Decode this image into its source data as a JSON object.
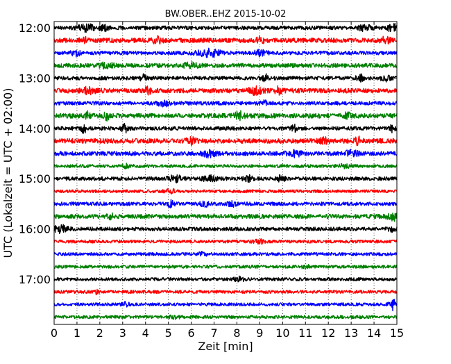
{
  "chart_data": {
    "type": "line",
    "title": "BW.OBER..EHZ 2015-10-02",
    "xlabel": "Zeit  [min]",
    "ylabel": "UTC (Lokalzeit = UTC + 02:00)",
    "xlim": [
      0,
      15
    ],
    "x_ticks": [
      "0",
      "1",
      "2",
      "3",
      "4",
      "5",
      "6",
      "7",
      "8",
      "9",
      "10",
      "11",
      "12",
      "13",
      "14",
      "15"
    ],
    "y_ticks": [
      "12:00",
      "13:00",
      "14:00",
      "15:00",
      "16:00",
      "17:00"
    ],
    "x_grid": true,
    "trace_color_cycle": [
      "#000000",
      "#ff0000",
      "#0000ff",
      "#008000"
    ],
    "series": [
      {
        "start_utc": "12:00",
        "noise": 0.35,
        "events": [
          {
            "t": 1.4,
            "a": 0.55,
            "w": 0.35
          },
          {
            "t": 2.2,
            "a": 0.4,
            "w": 0.3
          },
          {
            "t": 13.6,
            "a": 0.45,
            "w": 0.3
          },
          {
            "t": 14.8,
            "a": 0.7,
            "w": 0.2
          }
        ]
      },
      {
        "start_utc": "12:15",
        "noise": 0.45,
        "events": [
          {
            "t": 1.3,
            "a": 0.5,
            "w": 0.15
          },
          {
            "t": 4.5,
            "a": 0.5,
            "w": 0.2
          },
          {
            "t": 9.0,
            "a": 0.45,
            "w": 0.2
          },
          {
            "t": 14.5,
            "a": 0.5,
            "w": 0.2
          }
        ]
      },
      {
        "start_utc": "12:30",
        "noise": 0.35,
        "events": [
          {
            "t": 0.9,
            "a": 0.45,
            "w": 0.25
          },
          {
            "t": 6.8,
            "a": 0.6,
            "w": 0.5
          },
          {
            "t": 9.0,
            "a": 0.4,
            "w": 0.3
          }
        ]
      },
      {
        "start_utc": "12:45",
        "noise": 0.4,
        "events": [
          {
            "t": 2.3,
            "a": 0.4,
            "w": 0.3
          },
          {
            "t": 6.0,
            "a": 0.4,
            "w": 0.3
          }
        ]
      },
      {
        "start_utc": "13:00",
        "noise": 0.35,
        "events": [
          {
            "t": 3.9,
            "a": 0.6,
            "w": 0.12
          },
          {
            "t": 9.3,
            "a": 0.55,
            "w": 0.2
          },
          {
            "t": 13.4,
            "a": 0.5,
            "w": 0.2
          },
          {
            "t": 14.5,
            "a": 0.55,
            "w": 0.2
          }
        ]
      },
      {
        "start_utc": "13:15",
        "noise": 0.45,
        "events": [
          {
            "t": 1.5,
            "a": 0.45,
            "w": 0.3
          },
          {
            "t": 4.1,
            "a": 0.6,
            "w": 0.12
          },
          {
            "t": 8.8,
            "a": 0.5,
            "w": 0.3
          },
          {
            "t": 9.8,
            "a": 0.55,
            "w": 0.15
          }
        ]
      },
      {
        "start_utc": "13:30",
        "noise": 0.35,
        "events": [
          {
            "t": 4.8,
            "a": 0.4,
            "w": 0.3
          },
          {
            "t": 9.2,
            "a": 0.35,
            "w": 0.2
          }
        ]
      },
      {
        "start_utc": "13:45",
        "noise": 0.45,
        "events": [
          {
            "t": 1.5,
            "a": 0.6,
            "w": 0.12
          },
          {
            "t": 2.3,
            "a": 0.6,
            "w": 0.12
          },
          {
            "t": 8.1,
            "a": 0.65,
            "w": 0.2
          },
          {
            "t": 12.8,
            "a": 0.5,
            "w": 0.15
          }
        ]
      },
      {
        "start_utc": "14:00",
        "noise": 0.35,
        "events": [
          {
            "t": 1.3,
            "a": 0.7,
            "w": 0.12
          },
          {
            "t": 3.1,
            "a": 0.6,
            "w": 0.15
          },
          {
            "t": 10.5,
            "a": 0.5,
            "w": 0.12
          },
          {
            "t": 14.8,
            "a": 0.6,
            "w": 0.12
          }
        ]
      },
      {
        "start_utc": "14:15",
        "noise": 0.45,
        "events": [
          {
            "t": 6.0,
            "a": 0.45,
            "w": 0.2
          },
          {
            "t": 11.8,
            "a": 0.45,
            "w": 0.2
          },
          {
            "t": 13.3,
            "a": 0.55,
            "w": 0.15
          }
        ]
      },
      {
        "start_utc": "14:30",
        "noise": 0.4,
        "events": [
          {
            "t": 6.8,
            "a": 0.5,
            "w": 0.3
          },
          {
            "t": 10.5,
            "a": 0.45,
            "w": 0.3
          },
          {
            "t": 13.0,
            "a": 0.45,
            "w": 0.3
          }
        ]
      },
      {
        "start_utc": "14:45",
        "noise": 0.3,
        "events": [
          {
            "t": 3.2,
            "a": 0.3,
            "w": 0.2
          },
          {
            "t": 12.7,
            "a": 0.3,
            "w": 0.2
          }
        ]
      },
      {
        "start_utc": "15:00",
        "noise": 0.35,
        "events": [
          {
            "t": 5.3,
            "a": 0.5,
            "w": 0.3
          },
          {
            "t": 6.8,
            "a": 0.45,
            "w": 0.3
          },
          {
            "t": 8.5,
            "a": 0.45,
            "w": 0.2
          },
          {
            "t": 9.9,
            "a": 0.45,
            "w": 0.2
          }
        ]
      },
      {
        "start_utc": "15:15",
        "noise": 0.3,
        "events": [
          {
            "t": 5.1,
            "a": 0.3,
            "w": 0.2
          }
        ]
      },
      {
        "start_utc": "15:30",
        "noise": 0.35,
        "events": [
          {
            "t": 5.1,
            "a": 0.5,
            "w": 0.15
          },
          {
            "t": 6.6,
            "a": 0.35,
            "w": 0.2
          },
          {
            "t": 7.8,
            "a": 0.4,
            "w": 0.2
          }
        ]
      },
      {
        "start_utc": "15:45",
        "noise": 0.4,
        "events": [
          {
            "t": 2.5,
            "a": 0.35,
            "w": 0.2
          },
          {
            "t": 14.8,
            "a": 0.9,
            "w": 0.22
          }
        ]
      },
      {
        "start_utc": "16:00",
        "noise": 0.35,
        "events": [
          {
            "t": 0.3,
            "a": 0.65,
            "w": 0.3
          },
          {
            "t": 14.8,
            "a": 0.4,
            "w": 0.2
          }
        ]
      },
      {
        "start_utc": "16:15",
        "noise": 0.3,
        "events": [
          {
            "t": 9.0,
            "a": 0.3,
            "w": 0.2
          }
        ]
      },
      {
        "start_utc": "16:30",
        "noise": 0.3,
        "events": [
          {
            "t": 6.5,
            "a": 0.25,
            "w": 0.2
          }
        ]
      },
      {
        "start_utc": "16:45",
        "noise": 0.3,
        "events": [
          {
            "t": 11.0,
            "a": 0.25,
            "w": 0.2
          }
        ]
      },
      {
        "start_utc": "17:00",
        "noise": 0.3,
        "events": [
          {
            "t": 8.1,
            "a": 0.35,
            "w": 0.2
          }
        ]
      },
      {
        "start_utc": "17:15",
        "noise": 0.3,
        "events": [
          {
            "t": 1.9,
            "a": 0.6,
            "w": 0.08
          }
        ]
      },
      {
        "start_utc": "17:30",
        "noise": 0.3,
        "events": [
          {
            "t": 3.1,
            "a": 0.35,
            "w": 0.15
          },
          {
            "t": 14.8,
            "a": 1.0,
            "w": 0.15
          }
        ]
      },
      {
        "start_utc": "17:45",
        "noise": 0.3,
        "events": [
          {
            "t": 5.3,
            "a": 0.25,
            "w": 0.2
          }
        ]
      }
    ]
  }
}
